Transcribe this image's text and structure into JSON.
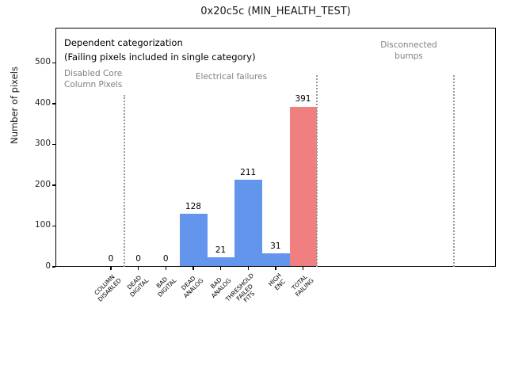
{
  "figure": {
    "title": "0x20c5c (MIN_HEALTH_TEST)"
  },
  "chart_data": {
    "type": "bar",
    "title": "0x20c5c (MIN_HEALTH_TEST)",
    "xlabel": "",
    "ylabel": "Number of pixels",
    "ylim": [
      0,
      585
    ],
    "yticks": [
      0,
      100,
      200,
      300,
      400,
      500
    ],
    "grid": false,
    "legend": null,
    "categories": [
      "COLUMN\nDISABLED",
      "DEAD\nDIGITAL",
      "BAD\nDIGITAL",
      "DEAD\nANALOG",
      "BAD\nANALOG",
      "THRESHOLD\nFAILED\nFITS",
      "HIGH\nENC",
      "TOTAL\nFAILING"
    ],
    "values": [
      0,
      0,
      0,
      128,
      21,
      211,
      31,
      391
    ],
    "bar_value_labels": [
      "0",
      "0",
      "0",
      "128",
      "21",
      "211",
      "31",
      "391"
    ],
    "bar_colors": [
      "#6495ed",
      "#6495ed",
      "#6495ed",
      "#6495ed",
      "#6495ed",
      "#6495ed",
      "#6495ed",
      "#f08080"
    ],
    "colors": {
      "bar_blue": "#6495ed",
      "bar_red": "#f08080",
      "annotation_gray": "#808080",
      "separator_gray": "#999999",
      "axis_black": "#000000"
    },
    "annotations": [
      {
        "id": "dependent-note",
        "text": "Dependent categorization\n(Failing pixels included in single category)",
        "color": "#000000"
      },
      {
        "id": "disabled-core-label",
        "text": "Disabled Core\nColumn Pixels",
        "color": "#808080"
      },
      {
        "id": "electrical-failures-label",
        "text": "Electrical failures",
        "color": "#808080"
      },
      {
        "id": "disconnected-bumps-label",
        "text": "Disconnected\nbumps",
        "color": "#808080"
      }
    ],
    "separators": {
      "style": "dotted",
      "color": "#999999",
      "count": 3
    }
  }
}
